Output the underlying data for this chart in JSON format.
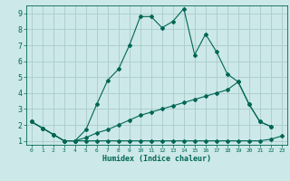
{
  "xlabel": "Humidex (Indice chaleur)",
  "bg_color": "#cce8e8",
  "grid_color": "#aacccc",
  "line_color": "#006655",
  "xlim_min": -0.5,
  "xlim_max": 23.5,
  "ylim_min": 0.75,
  "ylim_max": 9.5,
  "xticks": [
    0,
    1,
    2,
    3,
    4,
    5,
    6,
    7,
    8,
    9,
    10,
    11,
    12,
    13,
    14,
    15,
    16,
    17,
    18,
    19,
    20,
    21,
    22,
    23
  ],
  "yticks": [
    1,
    2,
    3,
    4,
    5,
    6,
    7,
    8,
    9
  ],
  "series1_x": [
    0,
    1,
    2,
    3,
    4,
    5,
    6,
    7,
    8,
    9,
    10,
    11,
    12,
    13,
    14,
    15,
    16,
    17,
    18,
    19,
    20,
    21,
    22
  ],
  "series1_y": [
    2.2,
    1.8,
    1.4,
    1.0,
    1.0,
    1.7,
    3.3,
    4.8,
    5.5,
    7.0,
    8.8,
    8.8,
    8.1,
    8.5,
    9.3,
    6.4,
    7.7,
    6.6,
    5.2,
    4.7,
    3.3,
    2.2,
    1.9
  ],
  "series2_x": [
    0,
    1,
    2,
    3,
    4,
    5,
    6,
    7,
    8,
    9,
    10,
    11,
    12,
    13,
    14,
    15,
    16,
    17,
    18,
    19,
    20,
    21,
    22
  ],
  "series2_y": [
    2.2,
    1.8,
    1.4,
    1.0,
    1.0,
    1.2,
    1.5,
    1.7,
    2.0,
    2.3,
    2.6,
    2.8,
    3.0,
    3.2,
    3.4,
    3.6,
    3.8,
    4.0,
    4.2,
    4.7,
    3.3,
    2.2,
    1.9
  ],
  "series3_x": [
    0,
    1,
    2,
    3,
    4,
    5,
    6,
    7,
    8,
    9,
    10,
    11,
    12,
    13,
    14,
    15,
    16,
    17,
    18,
    19,
    20,
    21,
    22,
    23
  ],
  "series3_y": [
    2.2,
    1.8,
    1.4,
    1.0,
    1.0,
    1.0,
    1.0,
    1.0,
    1.0,
    1.0,
    1.0,
    1.0,
    1.0,
    1.0,
    1.0,
    1.0,
    1.0,
    1.0,
    1.0,
    1.0,
    1.0,
    1.0,
    1.1,
    1.3
  ]
}
